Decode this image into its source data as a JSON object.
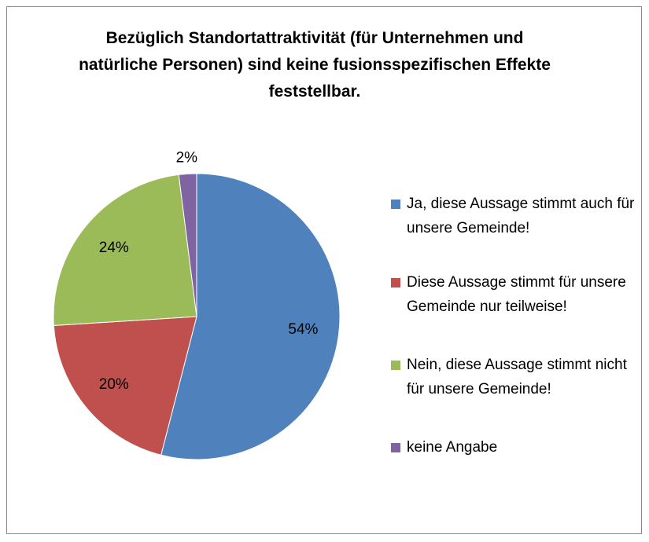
{
  "chart_data": {
    "type": "pie",
    "title": "Bezüglich Standortattraktivität (für Unternehmen und natürliche Personen) sind keine fusionsspezifischen Effekte feststellbar.",
    "categories": [
      "Ja, diese Aussage stimmt auch für unsere Gemeinde!",
      "Diese Aussage stimmt für unsere Gemeinde nur teilweise!",
      "Nein, diese Aussage stimmt nicht für unsere Gemeinde!",
      "keine Angabe"
    ],
    "values": [
      54,
      20,
      24,
      2
    ],
    "value_labels": [
      "54%",
      "20%",
      "24%",
      "2%"
    ],
    "colors": [
      "#4f81bd",
      "#c0504d",
      "#9bbb59",
      "#8064a2"
    ],
    "legend": "right"
  }
}
